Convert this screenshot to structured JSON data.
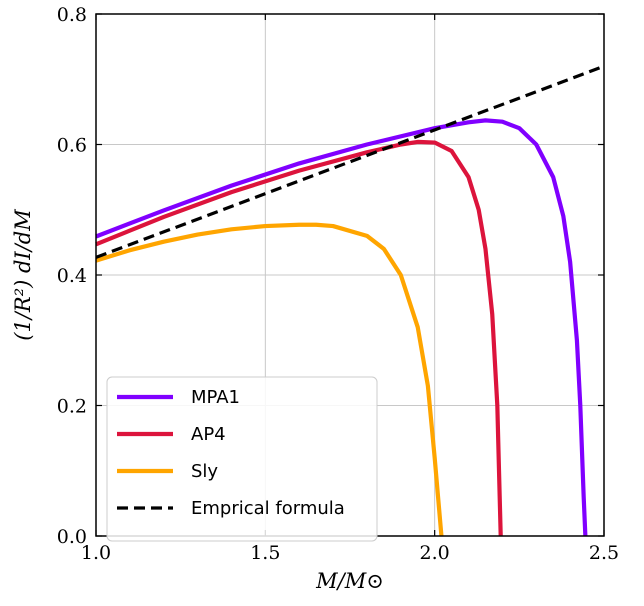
{
  "chart_data": {
    "type": "line",
    "xlabel": "M/M⊙",
    "ylabel": "(1/R²) dI/dM",
    "xlim": [
      1.0,
      2.5
    ],
    "ylim": [
      0.0,
      0.8
    ],
    "xticks": [
      1.0,
      1.5,
      2.0,
      2.5
    ],
    "xtick_labels": [
      "1.0",
      "1.5",
      "2.0",
      "2.5"
    ],
    "yticks": [
      0.0,
      0.2,
      0.4,
      0.6,
      0.8
    ],
    "ytick_labels": [
      "0.0",
      "0.2",
      "0.4",
      "0.6",
      "0.8"
    ],
    "grid": true,
    "legend_position": "bottom-left",
    "series": [
      {
        "name": "MPA1",
        "color": "#8000ff",
        "style": "solid",
        "x": [
          1.0,
          1.2,
          1.4,
          1.6,
          1.8,
          2.0,
          2.1,
          2.15,
          2.2,
          2.25,
          2.3,
          2.35,
          2.38,
          2.4,
          2.42,
          2.43,
          2.44,
          2.445
        ],
        "y": [
          0.459,
          0.499,
          0.537,
          0.571,
          0.6,
          0.625,
          0.634,
          0.637,
          0.635,
          0.625,
          0.6,
          0.55,
          0.49,
          0.42,
          0.3,
          0.2,
          0.06,
          0.0
        ]
      },
      {
        "name": "AP4",
        "color": "#dc143c",
        "style": "solid",
        "x": [
          1.0,
          1.2,
          1.4,
          1.6,
          1.8,
          1.9,
          1.95,
          2.0,
          2.05,
          2.1,
          2.13,
          2.15,
          2.17,
          2.185,
          2.19,
          2.195
        ],
        "y": [
          0.447,
          0.489,
          0.527,
          0.56,
          0.588,
          0.6,
          0.604,
          0.603,
          0.59,
          0.55,
          0.5,
          0.44,
          0.34,
          0.2,
          0.1,
          0.0
        ]
      },
      {
        "name": "Sly",
        "color": "#ffa500",
        "style": "solid",
        "x": [
          1.0,
          1.1,
          1.2,
          1.3,
          1.4,
          1.5,
          1.6,
          1.65,
          1.7,
          1.8,
          1.85,
          1.9,
          1.95,
          1.98,
          2.0,
          2.01,
          2.02
        ],
        "y": [
          0.422,
          0.438,
          0.451,
          0.462,
          0.47,
          0.475,
          0.477,
          0.477,
          0.475,
          0.46,
          0.44,
          0.4,
          0.32,
          0.23,
          0.12,
          0.06,
          0.0
        ]
      },
      {
        "name": "Emprical formula",
        "color": "#000000",
        "style": "dashed",
        "x": [
          1.0,
          2.5
        ],
        "y": [
          0.427,
          0.72
        ]
      }
    ]
  }
}
